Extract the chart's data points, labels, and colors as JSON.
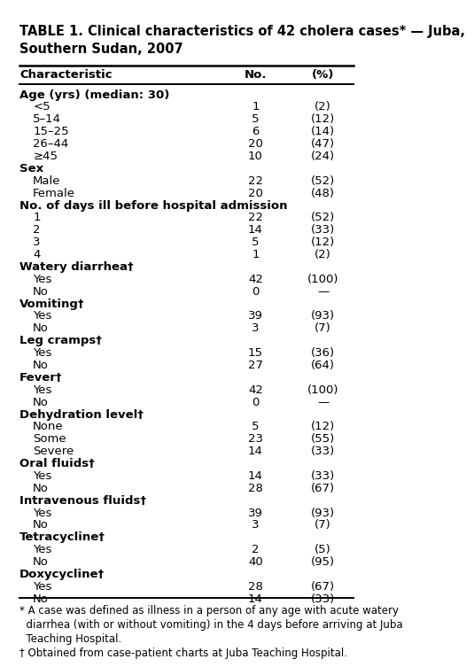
{
  "title_line1": "TABLE 1. Clinical characteristics of 42 cholera cases* — Juba,",
  "title_line2": "Southern Sudan, 2007",
  "col_headers": [
    "Characteristic",
    "No.",
    "(%)"
  ],
  "rows": [
    {
      "label": "Age (yrs) (median: 30)",
      "no": "",
      "pct": "",
      "bold": true,
      "indent": 0
    },
    {
      "label": "<5",
      "no": "1",
      "pct": "(2)",
      "bold": false,
      "indent": 1
    },
    {
      "label": "5–14",
      "no": "5",
      "pct": "(12)",
      "bold": false,
      "indent": 1
    },
    {
      "label": "15–25",
      "no": "6",
      "pct": "(14)",
      "bold": false,
      "indent": 1
    },
    {
      "label": "26–44",
      "no": "20",
      "pct": "(47)",
      "bold": false,
      "indent": 1
    },
    {
      "label": "≥45",
      "no": "10",
      "pct": "(24)",
      "bold": false,
      "indent": 1
    },
    {
      "label": "Sex",
      "no": "",
      "pct": "",
      "bold": true,
      "indent": 0
    },
    {
      "label": "Male",
      "no": "22",
      "pct": "(52)",
      "bold": false,
      "indent": 1
    },
    {
      "label": "Female",
      "no": "20",
      "pct": "(48)",
      "bold": false,
      "indent": 1
    },
    {
      "label": "No. of days ill before hospital admission",
      "no": "",
      "pct": "",
      "bold": true,
      "indent": 0
    },
    {
      "label": "1",
      "no": "22",
      "pct": "(52)",
      "bold": false,
      "indent": 1
    },
    {
      "label": "2",
      "no": "14",
      "pct": "(33)",
      "bold": false,
      "indent": 1
    },
    {
      "label": "3",
      "no": "5",
      "pct": "(12)",
      "bold": false,
      "indent": 1
    },
    {
      "label": "4",
      "no": "1",
      "pct": "(2)",
      "bold": false,
      "indent": 1
    },
    {
      "label": "Watery diarrhea†",
      "no": "",
      "pct": "",
      "bold": true,
      "indent": 0
    },
    {
      "label": "Yes",
      "no": "42",
      "pct": "(100)",
      "bold": false,
      "indent": 1
    },
    {
      "label": "No",
      "no": "0",
      "pct": "—",
      "bold": false,
      "indent": 1
    },
    {
      "label": "Vomiting†",
      "no": "",
      "pct": "",
      "bold": true,
      "indent": 0
    },
    {
      "label": "Yes",
      "no": "39",
      "pct": "(93)",
      "bold": false,
      "indent": 1
    },
    {
      "label": "No",
      "no": "3",
      "pct": "(7)",
      "bold": false,
      "indent": 1
    },
    {
      "label": "Leg cramps†",
      "no": "",
      "pct": "",
      "bold": true,
      "indent": 0
    },
    {
      "label": "Yes",
      "no": "15",
      "pct": "(36)",
      "bold": false,
      "indent": 1
    },
    {
      "label": "No",
      "no": "27",
      "pct": "(64)",
      "bold": false,
      "indent": 1
    },
    {
      "label": "Fever†",
      "no": "",
      "pct": "",
      "bold": true,
      "indent": 0
    },
    {
      "label": "Yes",
      "no": "42",
      "pct": "(100)",
      "bold": false,
      "indent": 1
    },
    {
      "label": "No",
      "no": "0",
      "pct": "—",
      "bold": false,
      "indent": 1
    },
    {
      "label": "Dehydration level†",
      "no": "",
      "pct": "",
      "bold": true,
      "indent": 0
    },
    {
      "label": "None",
      "no": "5",
      "pct": "(12)",
      "bold": false,
      "indent": 1
    },
    {
      "label": "Some",
      "no": "23",
      "pct": "(55)",
      "bold": false,
      "indent": 1
    },
    {
      "label": "Severe",
      "no": "14",
      "pct": "(33)",
      "bold": false,
      "indent": 1
    },
    {
      "label": "Oral fluids†",
      "no": "",
      "pct": "",
      "bold": true,
      "indent": 0
    },
    {
      "label": "Yes",
      "no": "14",
      "pct": "(33)",
      "bold": false,
      "indent": 1
    },
    {
      "label": "No",
      "no": "28",
      "pct": "(67)",
      "bold": false,
      "indent": 1
    },
    {
      "label": "Intravenous fluids†",
      "no": "",
      "pct": "",
      "bold": true,
      "indent": 0
    },
    {
      "label": "Yes",
      "no": "39",
      "pct": "(93)",
      "bold": false,
      "indent": 1
    },
    {
      "label": "No",
      "no": "3",
      "pct": "(7)",
      "bold": false,
      "indent": 1
    },
    {
      "label": "Tetracycline†",
      "no": "",
      "pct": "",
      "bold": true,
      "indent": 0
    },
    {
      "label": "Yes",
      "no": "2",
      "pct": "(5)",
      "bold": false,
      "indent": 1
    },
    {
      "label": "No",
      "no": "40",
      "pct": "(95)",
      "bold": false,
      "indent": 1
    },
    {
      "label": "Doxycycline†",
      "no": "",
      "pct": "",
      "bold": true,
      "indent": 0
    },
    {
      "label": "Yes",
      "no": "28",
      "pct": "(67)",
      "bold": false,
      "indent": 1
    },
    {
      "label": "No",
      "no": "14",
      "pct": "(33)",
      "bold": false,
      "indent": 1
    }
  ],
  "footnote1": "* A case was defined as illness in a person of any age with acute watery",
  "footnote2": "  diarrhea (with or without vomiting) in the 4 days before arriving at Juba",
  "footnote3": "  Teaching Hospital.",
  "footnote4": "† Obtained from case-patient charts at Juba Teaching Hospital.",
  "bg_color": "#ffffff",
  "font_size": 9.5,
  "title_font_size": 10.5,
  "header_font_size": 9.5,
  "footnote_font_size": 8.5
}
